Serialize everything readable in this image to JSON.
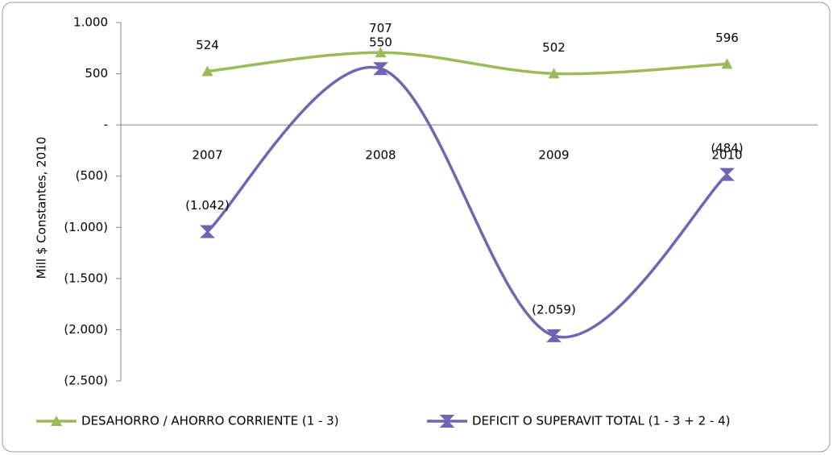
{
  "chart_data": {
    "type": "line",
    "y_label": "Mill $ Constantes, 2010",
    "categories": [
      "2007",
      "2008",
      "2009",
      "2010"
    ],
    "series": [
      {
        "name": "DESAHORRO / AHORRO CORRIENTE  (1 - 3)",
        "color": "#9bbb59",
        "marker": "triangle",
        "values": [
          524,
          707,
          502,
          596
        ]
      },
      {
        "name": "DEFICIT O SUPERAVIT TOTAL (1 - 3 + 2 - 4)",
        "color": "#6f65b2",
        "marker": "hourglass",
        "values": [
          -1042,
          550,
          -2059,
          -484
        ],
        "value_labels": [
          "(1.042)",
          "550",
          "(2.059)",
          "(484)"
        ]
      }
    ],
    "ylim": [
      -2500,
      1000
    ],
    "yticks": [
      {
        "value": 1000,
        "label": "1.000"
      },
      500,
      {
        "value": 0,
        "label": "-"
      },
      {
        "value": -500,
        "label": "(500)"
      },
      {
        "value": -1000,
        "label": "(1.000)"
      },
      {
        "value": -1500,
        "label": "(1.500)"
      },
      {
        "value": -2000,
        "label": "(2.000)"
      },
      {
        "value": -2500,
        "label": "(2.500)"
      }
    ],
    "smooth": true,
    "legend": "bottom"
  }
}
